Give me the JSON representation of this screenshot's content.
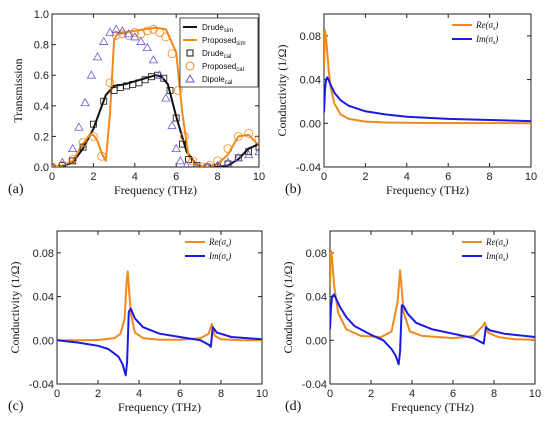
{
  "colors": {
    "orange": "#f08a1c",
    "blue": "#1a1ae6",
    "black": "#111111",
    "violet": "#6a5acd"
  },
  "chart_data": [
    {
      "panel": "(a)",
      "type": "line",
      "xlabel": "Frequency (THz)",
      "ylabel": "Transmission",
      "xlim": [
        0,
        10
      ],
      "ylim": [
        0,
        1.0
      ],
      "xticks": [
        "0",
        "2",
        "4",
        "6",
        "8",
        "10"
      ],
      "yticks": [
        "0.0",
        "0.2",
        "0.4",
        "0.6",
        "0.8",
        "1.0"
      ],
      "legend_position": "top-right",
      "series": [
        {
          "name": "Drude",
          "sub": "sim",
          "style": "line",
          "color": "#111111",
          "x": [
            0,
            0.5,
            1,
            1.5,
            2,
            2.3,
            2.6,
            3,
            3.5,
            4,
            4.5,
            5,
            5.3,
            5.6,
            6,
            6.5,
            7,
            7.5,
            8,
            8.5,
            9,
            9.5,
            10
          ],
          "y": [
            0,
            0.005,
            0.03,
            0.12,
            0.25,
            0.36,
            0.47,
            0.53,
            0.54,
            0.56,
            0.58,
            0.6,
            0.59,
            0.54,
            0.33,
            0.1,
            0.01,
            0,
            0,
            0.01,
            0.05,
            0.12,
            0.15
          ]
        },
        {
          "name": "Proposed",
          "sub": "sim",
          "style": "line",
          "color": "#f08a1c",
          "x": [
            0,
            0.5,
            1,
            1.5,
            1.8,
            2,
            2.2,
            2.4,
            2.6,
            2.8,
            3,
            3.2,
            3.5,
            4,
            4.5,
            5,
            5.5,
            6,
            6.3,
            6.6,
            7,
            7.5,
            8,
            8.5,
            9,
            9.5,
            10
          ],
          "y": [
            0,
            0.01,
            0.04,
            0.15,
            0.21,
            0.21,
            0.17,
            0.09,
            0.04,
            0.35,
            0.83,
            0.88,
            0.88,
            0.89,
            0.9,
            0.91,
            0.9,
            0.75,
            0.35,
            0.07,
            0.01,
            0,
            0.02,
            0.08,
            0.2,
            0.21,
            0.14
          ]
        },
        {
          "name": "Drude",
          "sub": "cal",
          "style": "square",
          "color": "#111111",
          "x": [
            0,
            0.5,
            1,
            1.5,
            2,
            2.5,
            3,
            3.3,
            3.6,
            3.9,
            4.2,
            4.5,
            4.8,
            5.1,
            5.4,
            5.7,
            6,
            6.3,
            6.6,
            7,
            7.5,
            8,
            8.5,
            9,
            9.5,
            10
          ],
          "y": [
            0,
            0.01,
            0.04,
            0.13,
            0.28,
            0.43,
            0.5,
            0.52,
            0.53,
            0.54,
            0.55,
            0.57,
            0.59,
            0.6,
            0.58,
            0.5,
            0.32,
            0.15,
            0.05,
            0.01,
            0,
            0,
            0.02,
            0.06,
            0.1,
            0.13
          ]
        },
        {
          "name": "Proposed",
          "sub": "cal",
          "style": "circle",
          "color": "#f08a1c",
          "x": [
            0,
            0.5,
            1,
            1.5,
            2,
            2.4,
            2.8,
            3.1,
            3.4,
            3.7,
            4,
            4.3,
            4.6,
            4.9,
            5.2,
            5.5,
            5.8,
            6.1,
            6.4,
            6.8,
            7.2,
            7.6,
            8,
            8.5,
            9,
            9.5,
            10
          ],
          "y": [
            0,
            0.01,
            0.05,
            0.16,
            0.2,
            0.07,
            0.55,
            0.86,
            0.87,
            0.86,
            0.88,
            0.87,
            0.89,
            0.9,
            0.88,
            0.85,
            0.74,
            0.5,
            0.2,
            0.04,
            0,
            0.01,
            0.04,
            0.12,
            0.2,
            0.22,
            0.18
          ]
        },
        {
          "name": "Dipole",
          "sub": "cal",
          "style": "triangle",
          "color": "#6a5acd",
          "x": [
            0,
            0.5,
            1,
            1.3,
            1.6,
            1.9,
            2.2,
            2.5,
            2.8,
            3.1,
            3.4,
            3.7,
            4,
            4.3,
            4.6,
            4.9,
            5.2,
            5.5,
            5.8,
            6,
            6.2,
            6.5,
            7,
            7.5,
            8,
            8.5,
            9,
            9.5,
            10
          ],
          "y": [
            0,
            0.03,
            0.12,
            0.26,
            0.42,
            0.6,
            0.72,
            0.82,
            0.88,
            0.9,
            0.89,
            0.87,
            0.85,
            0.82,
            0.78,
            0.7,
            0.6,
            0.45,
            0.27,
            0.12,
            0.04,
            0.01,
            0,
            0,
            0.01,
            0.03,
            0.06,
            0.08,
            0.1
          ]
        }
      ]
    },
    {
      "panel": "(b)",
      "type": "line",
      "xlabel": "Frequency (THz)",
      "ylabel": "Conductivity (1/Ω)",
      "xlim": [
        0,
        10
      ],
      "ylim": [
        -0.04,
        0.1
      ],
      "xticks": [
        "0",
        "2",
        "4",
        "6",
        "8",
        "10"
      ],
      "yticks": [
        "-0.04",
        "0.00",
        "0.04",
        "0.08"
      ],
      "legend_position": "top-right",
      "series": [
        {
          "name": "Re(σs)",
          "color": "#f08a1c",
          "x": [
            0,
            0.05,
            0.1,
            0.2,
            0.3,
            0.5,
            0.8,
            1.2,
            2,
            3,
            5,
            10
          ],
          "y": [
            0.05,
            0.085,
            0.078,
            0.055,
            0.035,
            0.018,
            0.008,
            0.004,
            0.0015,
            0.0007,
            0.0003,
            0.0001
          ]
        },
        {
          "name": "Im(σs)",
          "color": "#1a1ae6",
          "x": [
            0,
            0.05,
            0.1,
            0.15,
            0.2,
            0.3,
            0.5,
            0.8,
            1.2,
            2,
            3,
            4,
            6,
            8,
            10
          ],
          "y": [
            0.01,
            0.03,
            0.04,
            0.042,
            0.041,
            0.036,
            0.028,
            0.021,
            0.016,
            0.011,
            0.008,
            0.006,
            0.004,
            0.003,
            0.002
          ]
        }
      ]
    },
    {
      "panel": "(c)",
      "type": "line",
      "xlabel": "Frequency (THz)",
      "ylabel": "Conductivity (1/Ω)",
      "xlim": [
        0,
        10
      ],
      "ylim": [
        -0.04,
        0.1
      ],
      "xticks": [
        "0",
        "2",
        "4",
        "6",
        "8",
        "10"
      ],
      "yticks": [
        "-0.04",
        "0.00",
        "0.04",
        "0.08"
      ],
      "legend_position": "top-right",
      "series": [
        {
          "name": "Re(σs)",
          "color": "#f08a1c",
          "x": [
            0,
            1,
            2,
            2.8,
            3.1,
            3.3,
            3.4,
            3.45,
            3.6,
            3.8,
            4.2,
            5,
            6,
            7,
            7.4,
            7.55,
            7.7,
            8,
            9,
            10
          ],
          "y": [
            0,
            0,
            0.0003,
            0.002,
            0.006,
            0.02,
            0.055,
            0.063,
            0.025,
            0.007,
            0.002,
            0.0005,
            0.0005,
            0.002,
            0.006,
            0.015,
            0.004,
            0.001,
            0,
            0
          ]
        },
        {
          "name": "Im(σs)",
          "color": "#1a1ae6",
          "x": [
            0,
            1,
            2,
            2.5,
            3,
            3.2,
            3.35,
            3.42,
            3.5,
            3.6,
            3.8,
            4.2,
            5,
            6,
            7,
            7.4,
            7.5,
            7.6,
            7.8,
            8.5,
            10
          ],
          "y": [
            0,
            -0.002,
            -0.005,
            -0.008,
            -0.015,
            -0.022,
            -0.032,
            -0.02,
            0.026,
            0.029,
            0.02,
            0.012,
            0.006,
            0.003,
            0,
            -0.004,
            -0.006,
            0.012,
            0.007,
            0.003,
            0.001
          ]
        }
      ]
    },
    {
      "panel": "(d)",
      "type": "line",
      "xlabel": "Frequency (THz)",
      "ylabel": "Conductivity (1/Ω)",
      "xlim": [
        0,
        10
      ],
      "ylim": [
        -0.04,
        0.1
      ],
      "xticks": [
        "0",
        "2",
        "4",
        "6",
        "8",
        "10"
      ],
      "yticks": [
        "-0.04",
        "0.00",
        "0.04",
        "0.08"
      ],
      "legend_position": "top-right",
      "series": [
        {
          "name": "Re(σs)",
          "color": "#f08a1c",
          "x": [
            0,
            0.05,
            0.1,
            0.2,
            0.4,
            0.8,
            1.5,
            2.5,
            3,
            3.3,
            3.42,
            3.6,
            3.9,
            4.5,
            6,
            7,
            7.45,
            7.55,
            7.7,
            8.2,
            9,
            10
          ],
          "y": [
            0.05,
            0.082,
            0.075,
            0.05,
            0.025,
            0.01,
            0.004,
            0.003,
            0.008,
            0.035,
            0.064,
            0.025,
            0.008,
            0.004,
            0.002,
            0.004,
            0.013,
            0.016,
            0.007,
            0.003,
            0.001,
            0.0005
          ]
        },
        {
          "name": "Im(σs)",
          "color": "#1a1ae6",
          "x": [
            0,
            0.05,
            0.1,
            0.2,
            0.3,
            0.5,
            0.8,
            1.2,
            2,
            2.6,
            3,
            3.2,
            3.35,
            3.42,
            3.5,
            3.6,
            3.8,
            4.2,
            5,
            6,
            7,
            7.4,
            7.5,
            7.6,
            7.8,
            8.5,
            10
          ],
          "y": [
            0.01,
            0.03,
            0.04,
            0.042,
            0.038,
            0.03,
            0.021,
            0.013,
            0.005,
            0,
            -0.008,
            -0.014,
            -0.022,
            -0.01,
            0.032,
            0.031,
            0.024,
            0.016,
            0.01,
            0.006,
            0.002,
            -0.002,
            -0.003,
            0.012,
            0.009,
            0.006,
            0.003
          ]
        }
      ]
    }
  ]
}
